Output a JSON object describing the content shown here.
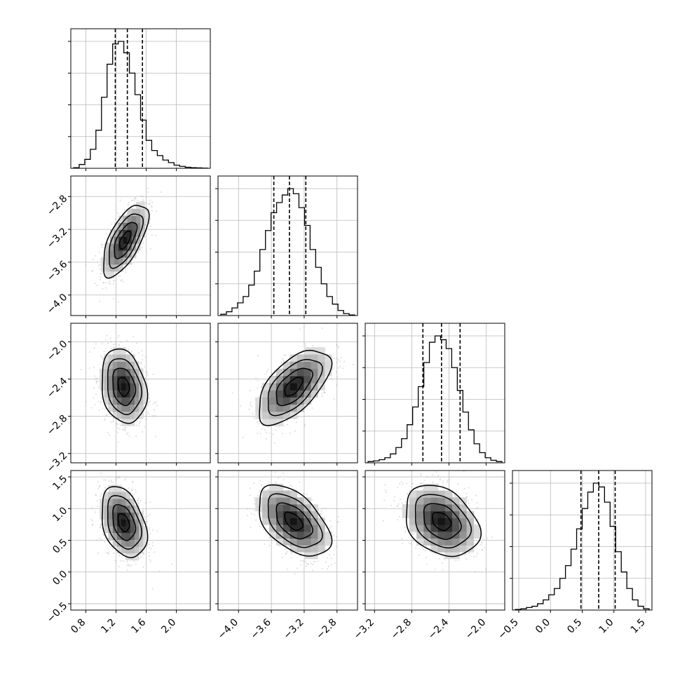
{
  "chart_data": {
    "type": "corner",
    "parameters": 4,
    "grid": true,
    "ranges": [
      [
        0.6,
        2.45
      ],
      [
        -4.25,
        -2.55
      ],
      [
        -3.3,
        -1.8
      ],
      [
        -0.6,
        1.6
      ]
    ],
    "ticks": [
      [
        "0.8",
        "1.2",
        "1.6",
        "2.0"
      ],
      [
        "−4.0",
        "−3.6",
        "−3.2",
        "−2.8"
      ],
      [
        "−3.2",
        "−2.8",
        "−2.4",
        "−2.0"
      ],
      [
        "−0.5",
        "0.0",
        "0.5",
        "1.0",
        "1.5"
      ]
    ],
    "tick_values": [
      [
        0.8,
        1.2,
        1.6,
        2.0
      ],
      [
        -4.0,
        -3.6,
        -3.2,
        -2.8
      ],
      [
        -3.2,
        -2.8,
        -2.4,
        -2.0
      ],
      [
        -0.5,
        0.0,
        0.5,
        1.0,
        1.5
      ]
    ],
    "quantiles": [
      [
        1.19,
        1.35,
        1.55
      ],
      [
        -3.57,
        -3.38,
        -3.18
      ],
      [
        -2.68,
        -2.48,
        -2.28
      ],
      [
        0.48,
        0.76,
        1.02
      ]
    ],
    "histograms": [
      [
        0.005,
        0.03,
        0.07,
        0.15,
        0.3,
        0.56,
        0.82,
        0.98,
        1.0,
        0.91,
        0.75,
        0.58,
        0.38,
        0.22,
        0.14,
        0.1,
        0.065,
        0.045,
        0.025,
        0.015,
        0.008,
        0.005,
        0.003,
        0.001
      ],
      [
        0.01,
        0.03,
        0.06,
        0.1,
        0.15,
        0.24,
        0.35,
        0.52,
        0.67,
        0.81,
        0.89,
        0.95,
        1.0,
        0.96,
        0.85,
        0.71,
        0.52,
        0.38,
        0.25,
        0.15,
        0.09,
        0.04,
        0.015,
        0.005
      ],
      [
        0.01,
        0.015,
        0.025,
        0.04,
        0.07,
        0.12,
        0.19,
        0.3,
        0.44,
        0.6,
        0.79,
        0.95,
        1.0,
        0.97,
        0.9,
        0.75,
        0.57,
        0.4,
        0.26,
        0.15,
        0.08,
        0.04,
        0.02,
        0.01
      ],
      [
        0.005,
        0.01,
        0.02,
        0.03,
        0.05,
        0.08,
        0.12,
        0.17,
        0.25,
        0.35,
        0.48,
        0.64,
        0.8,
        0.93,
        1.0,
        0.97,
        0.85,
        0.66,
        0.46,
        0.3,
        0.17,
        0.08,
        0.03,
        0.01
      ]
    ],
    "densities": [
      {
        "row": 1,
        "col": 0,
        "center": [
          1.32,
          -3.33
        ],
        "sigma": [
          0.15,
          0.22
        ],
        "rho": 0.65
      },
      {
        "row": 2,
        "col": 0,
        "center": [
          1.3,
          -2.48
        ],
        "sigma": [
          0.15,
          0.2
        ],
        "rho": -0.2
      },
      {
        "row": 2,
        "col": 1,
        "center": [
          -3.33,
          -2.48
        ],
        "sigma": [
          0.22,
          0.2
        ],
        "rho": 0.6
      },
      {
        "row": 3,
        "col": 0,
        "center": [
          1.3,
          0.78
        ],
        "sigma": [
          0.15,
          0.28
        ],
        "rho": -0.35
      },
      {
        "row": 3,
        "col": 1,
        "center": [
          -3.33,
          0.8
        ],
        "sigma": [
          0.22,
          0.28
        ],
        "rho": -0.5
      },
      {
        "row": 3,
        "col": 2,
        "center": [
          -2.48,
          0.8
        ],
        "sigma": [
          0.2,
          0.28
        ],
        "rho": -0.3
      }
    ],
    "contour_levels_sigma": [
      0.5,
      1.0,
      1.5,
      2.0
    ]
  }
}
